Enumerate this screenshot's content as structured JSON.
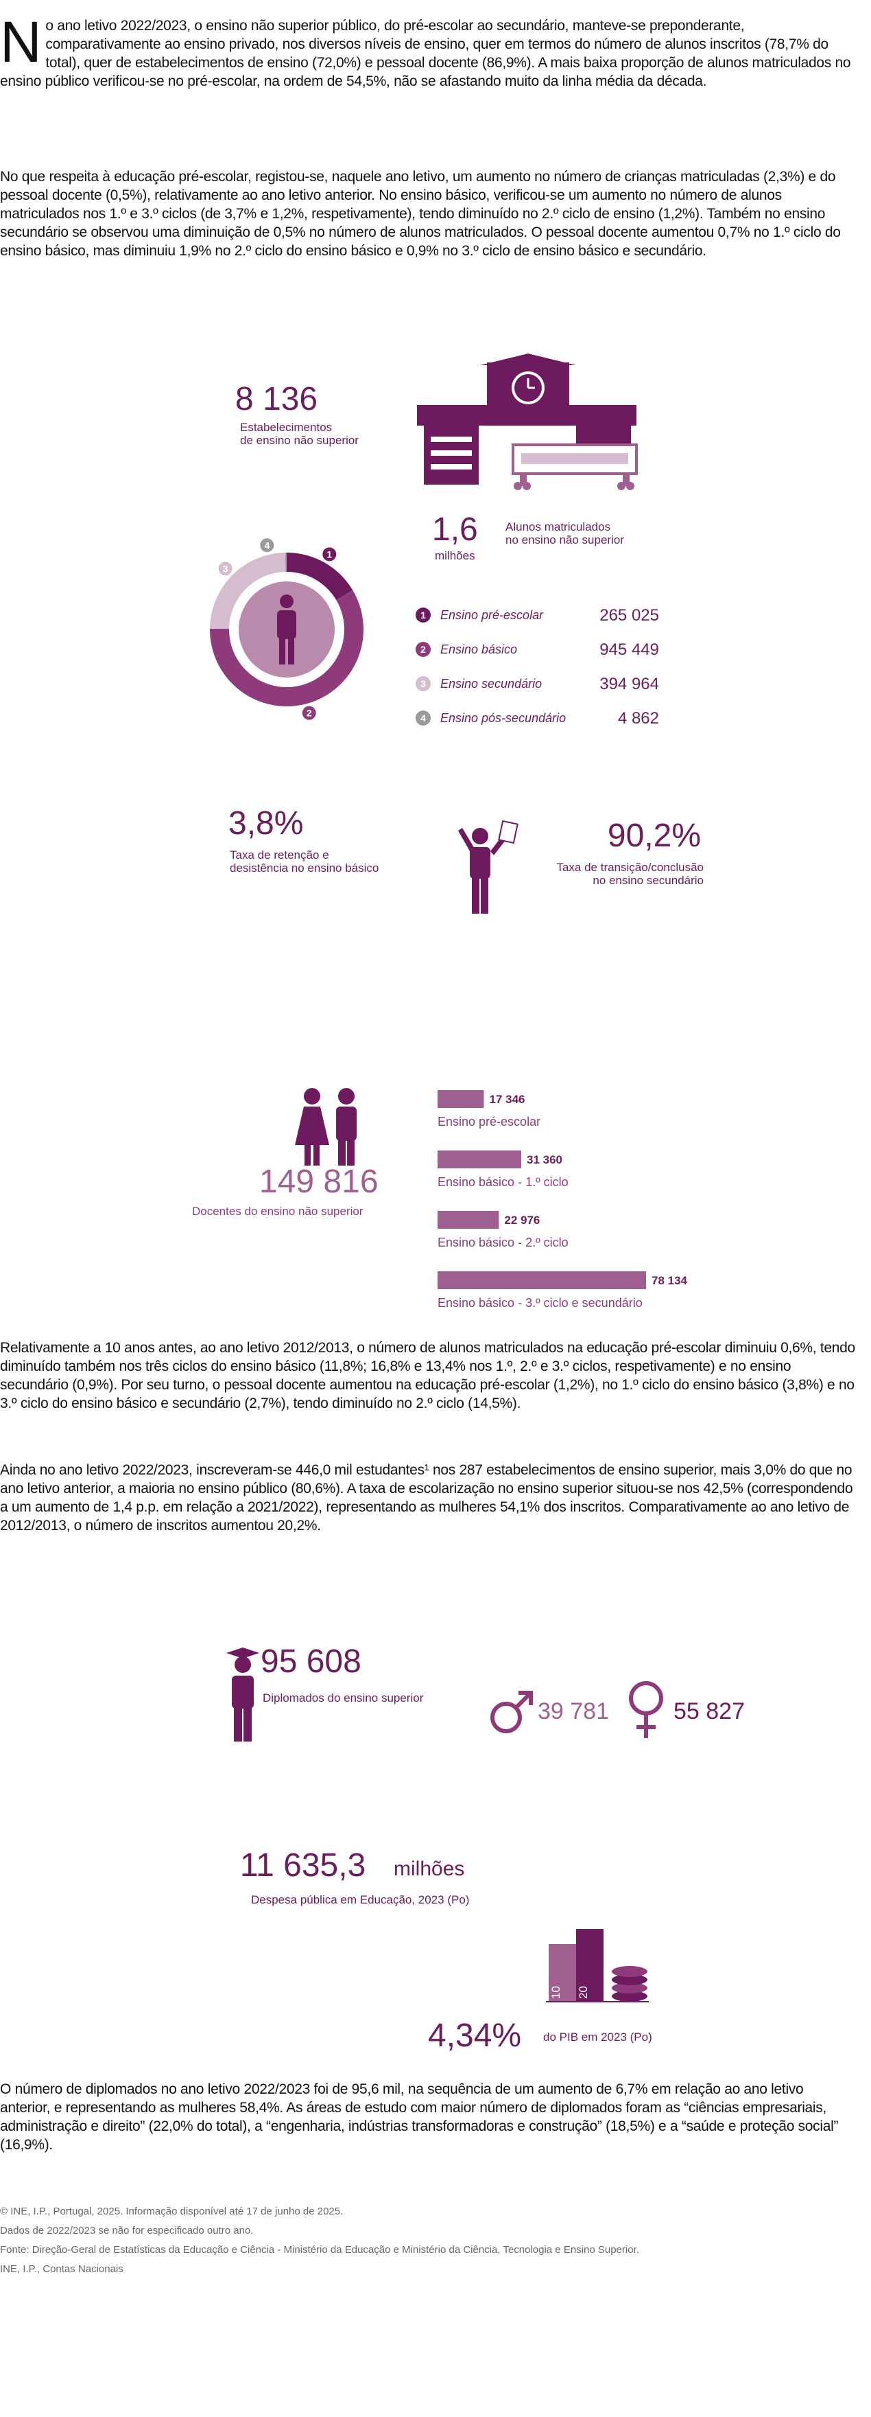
{
  "paragraphs": [
    "No ano letivo 2022/2023, o ensino não superior público, do pré-escolar ao secundário, manteve-se preponderante, comparativamente ao ensino privado, nos diversos níveis de ensino, quer em termos do número de alunos inscritos (78,7% do total), quer de estabelecimentos de ensino (72,0%) e pessoal docente (86,9%). A mais baixa proporção de alunos matriculados no ensino público verificou-se no pré-escolar, na ordem de 54,5%, não se afastando muito da linha média da década.",
    "No que respeita à educação pré-escolar, registou-se, naquele ano letivo, um aumento no número de crianças matriculadas (2,3%) e do pessoal docente (0,5%), relativamente ao ano letivo anterior. No ensino básico, verificou-se um aumento no número de alunos matriculados nos 1.º e 3.º ciclos (de 3,7% e 1,2%, respetivamente), tendo diminuído no 2.º ciclo de ensino (1,2%). Também no ensino secundário se observou uma diminuição de 0,5% no número de alunos matriculados. O pessoal docente aumentou 0,7% no 1.º ciclo do ensino básico, mas diminuiu 1,9% no 2.º ciclo do ensino básico e 0,9% no 3.º ciclo de ensino básico e secundário.",
    "Relativamente a 10 anos antes, ao  ano letivo 2012/2013, o número de alunos matriculados na educação pré-escolar diminuiu 0,6%, tendo diminuído também nos três ciclos do ensino básico (11,8%; 16,8% e 13,4% nos 1.º, 2.º e 3.º ciclos, respetivamente) e no ensino secundário (0,9%). Por seu turno, o pessoal docente aumentou na educação pré-escolar (1,2%), no 1.º ciclo do ensino básico (3,8%) e no 3.º ciclo do ensino básico e secundário (2,7%), tendo diminuído no 2.º ciclo (14,5%).",
    "Ainda no ano letivo 2022/2023, inscreveram-se 446,0 mil estudantes¹ nos 287 estabelecimentos de ensino superior, mais 3,0% do que no ano letivo anterior, a maioria no ensino público (80,6%). A taxa de escolarização no ensino superior situou-se nos 42,5% (correspondendo a um aumento de 1,4 p.p. em relação a 2021/2022), representando as mulheres 54,1% dos inscritos. Comparativamente ao ano letivo de 2012/2013, o número de inscritos aumentou 20,2%.",
    "O número de diplomados no ano letivo 2022/2023 foi de 95,6 mil, na sequência de um aumento de 6,7% em relação ao ano letivo anterior, e representando as mulheres 58,4%. As áreas de estudo com maior número de diplomados foram as “ciências empresariais, administração e direito” (22,0% do total), a “engenharia, indústrias transformadoras e construção” (18,5%) e a “saúde e proteção social” (16,9%)."
  ],
  "schools": {
    "value": "8 136",
    "label": "Estabelecimentos\nde ensino não superior"
  },
  "students": {
    "value": "1,6",
    "unit": "milhões",
    "label": "Alunos matriculados\nno ensino não superior",
    "chart": {
      "type": "pie",
      "categories": [
        "Ensino pré-escolar",
        "Ensino básico",
        "Ensino secundário",
        "Ensino pós-secundário"
      ],
      "markers": [
        "1",
        "2",
        "3",
        "4"
      ],
      "values": [
        265025,
        945449,
        394964,
        4862
      ],
      "value_labels": [
        "265 025",
        "945 449",
        "394 964",
        "4 862"
      ],
      "colors": [
        "#6e1a5e",
        "#8e3a7b",
        "#d6bccf",
        "#9a9a9a"
      ]
    }
  },
  "retention": {
    "value": "3,8%",
    "label": "Taxa de retenção e\ndesistência no ensino básico"
  },
  "transition": {
    "value": "90,2%",
    "label": "Taxa de transição/conclusão\nno ensino secundário"
  },
  "teachers": {
    "value": "149 816",
    "label": "Docentes do ensino não superior",
    "chart": {
      "type": "bar",
      "categories": [
        "Ensino pré-escolar",
        "Ensino básico - 1.º ciclo",
        "Ensino básico - 2.º ciclo",
        "Ensino básico - 3.º ciclo e secundário"
      ],
      "values": [
        17346,
        31360,
        22976,
        78134
      ],
      "value_labels": [
        "17 346",
        "31 360",
        "22 976",
        "78 134"
      ],
      "color": "#a0608f"
    }
  },
  "graduates": {
    "value": "95 608",
    "label": "Diplomados do ensino superior",
    "men": "39 781",
    "women": "55 827"
  },
  "expenditure": {
    "value": "11 635,3",
    "unit": "milhões",
    "label": "Despesa pública em Educação, 2023 (Po)",
    "gdp_share": "4,34%",
    "gdp_label": "do PIB em 2023 (Po)",
    "icon_bars": [
      "10",
      "20"
    ]
  },
  "footer": [
    "© INE, I.P., Portugal, 2025. Informação disponível até 17 de junho de 2025.",
    "Dados de 2022/2023 se não for especificado outro ano.",
    "Fonte: Direção-Geral de Estatísticas da Educação e Ciência - Ministério da Educação e Ministério da Ciência, Tecnologia e Ensino Superior.",
    "INE, I.P., Contas Nacionais"
  ]
}
